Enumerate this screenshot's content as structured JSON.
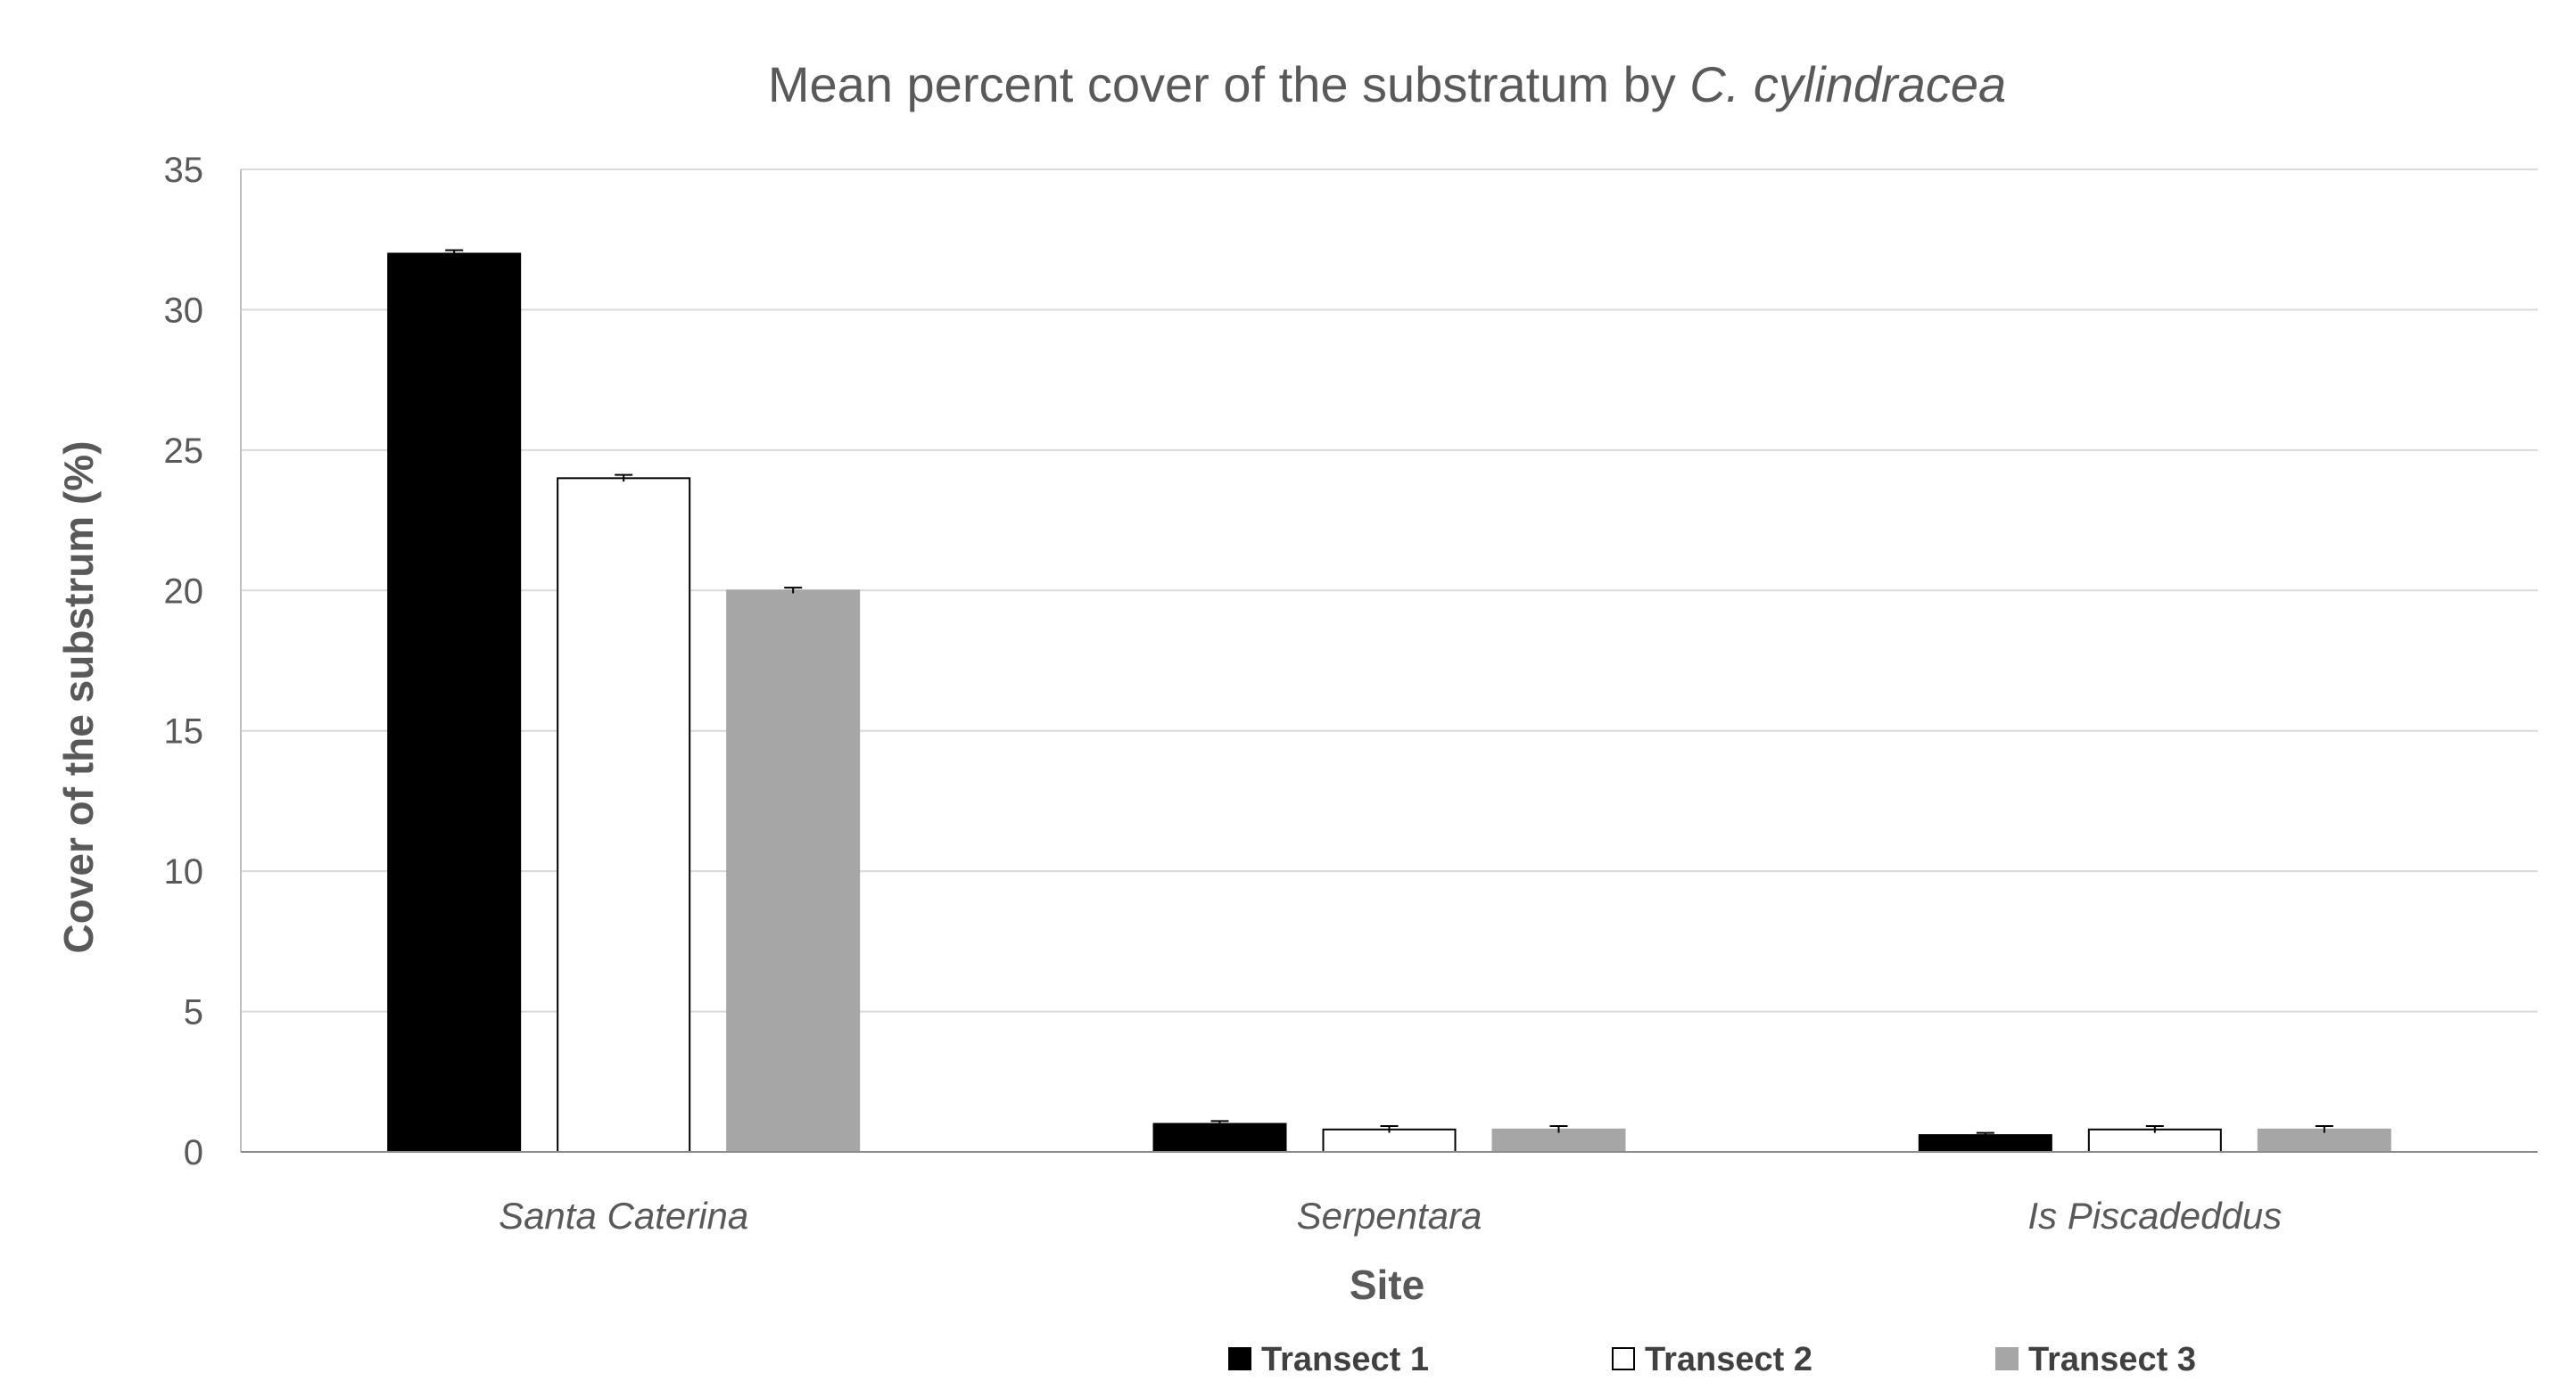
{
  "chart_data": {
    "type": "bar",
    "title_main": "Mean percent cover of the substratum by ",
    "title_italic": "C. cylindracea",
    "xlabel": "Site",
    "ylabel": "Cover of the substrum (%)",
    "categories": [
      "Santa Caterina",
      "Serpentara",
      "Is Piscadeddus"
    ],
    "ylim": [
      0,
      35
    ],
    "yticks": [
      0,
      5,
      10,
      15,
      20,
      25,
      30,
      35
    ],
    "grid": true,
    "legend_position": "bottom",
    "series": [
      {
        "name": "Transect 1",
        "values": [
          32,
          1.0,
          0.6
        ],
        "errors": [
          0.12,
          0.1,
          0.08
        ],
        "color": "#000000",
        "stroke": "#000000"
      },
      {
        "name": "Transect 2",
        "values": [
          24,
          0.8,
          0.8
        ],
        "errors": [
          0.12,
          0.12,
          0.12
        ],
        "color": "#ffffff",
        "stroke": "#000000"
      },
      {
        "name": "Transect 3",
        "values": [
          20,
          0.8,
          0.8
        ],
        "errors": [
          0.1,
          0.12,
          0.12
        ],
        "color": "#a6a6a6",
        "stroke": "#a6a6a6"
      }
    ]
  }
}
